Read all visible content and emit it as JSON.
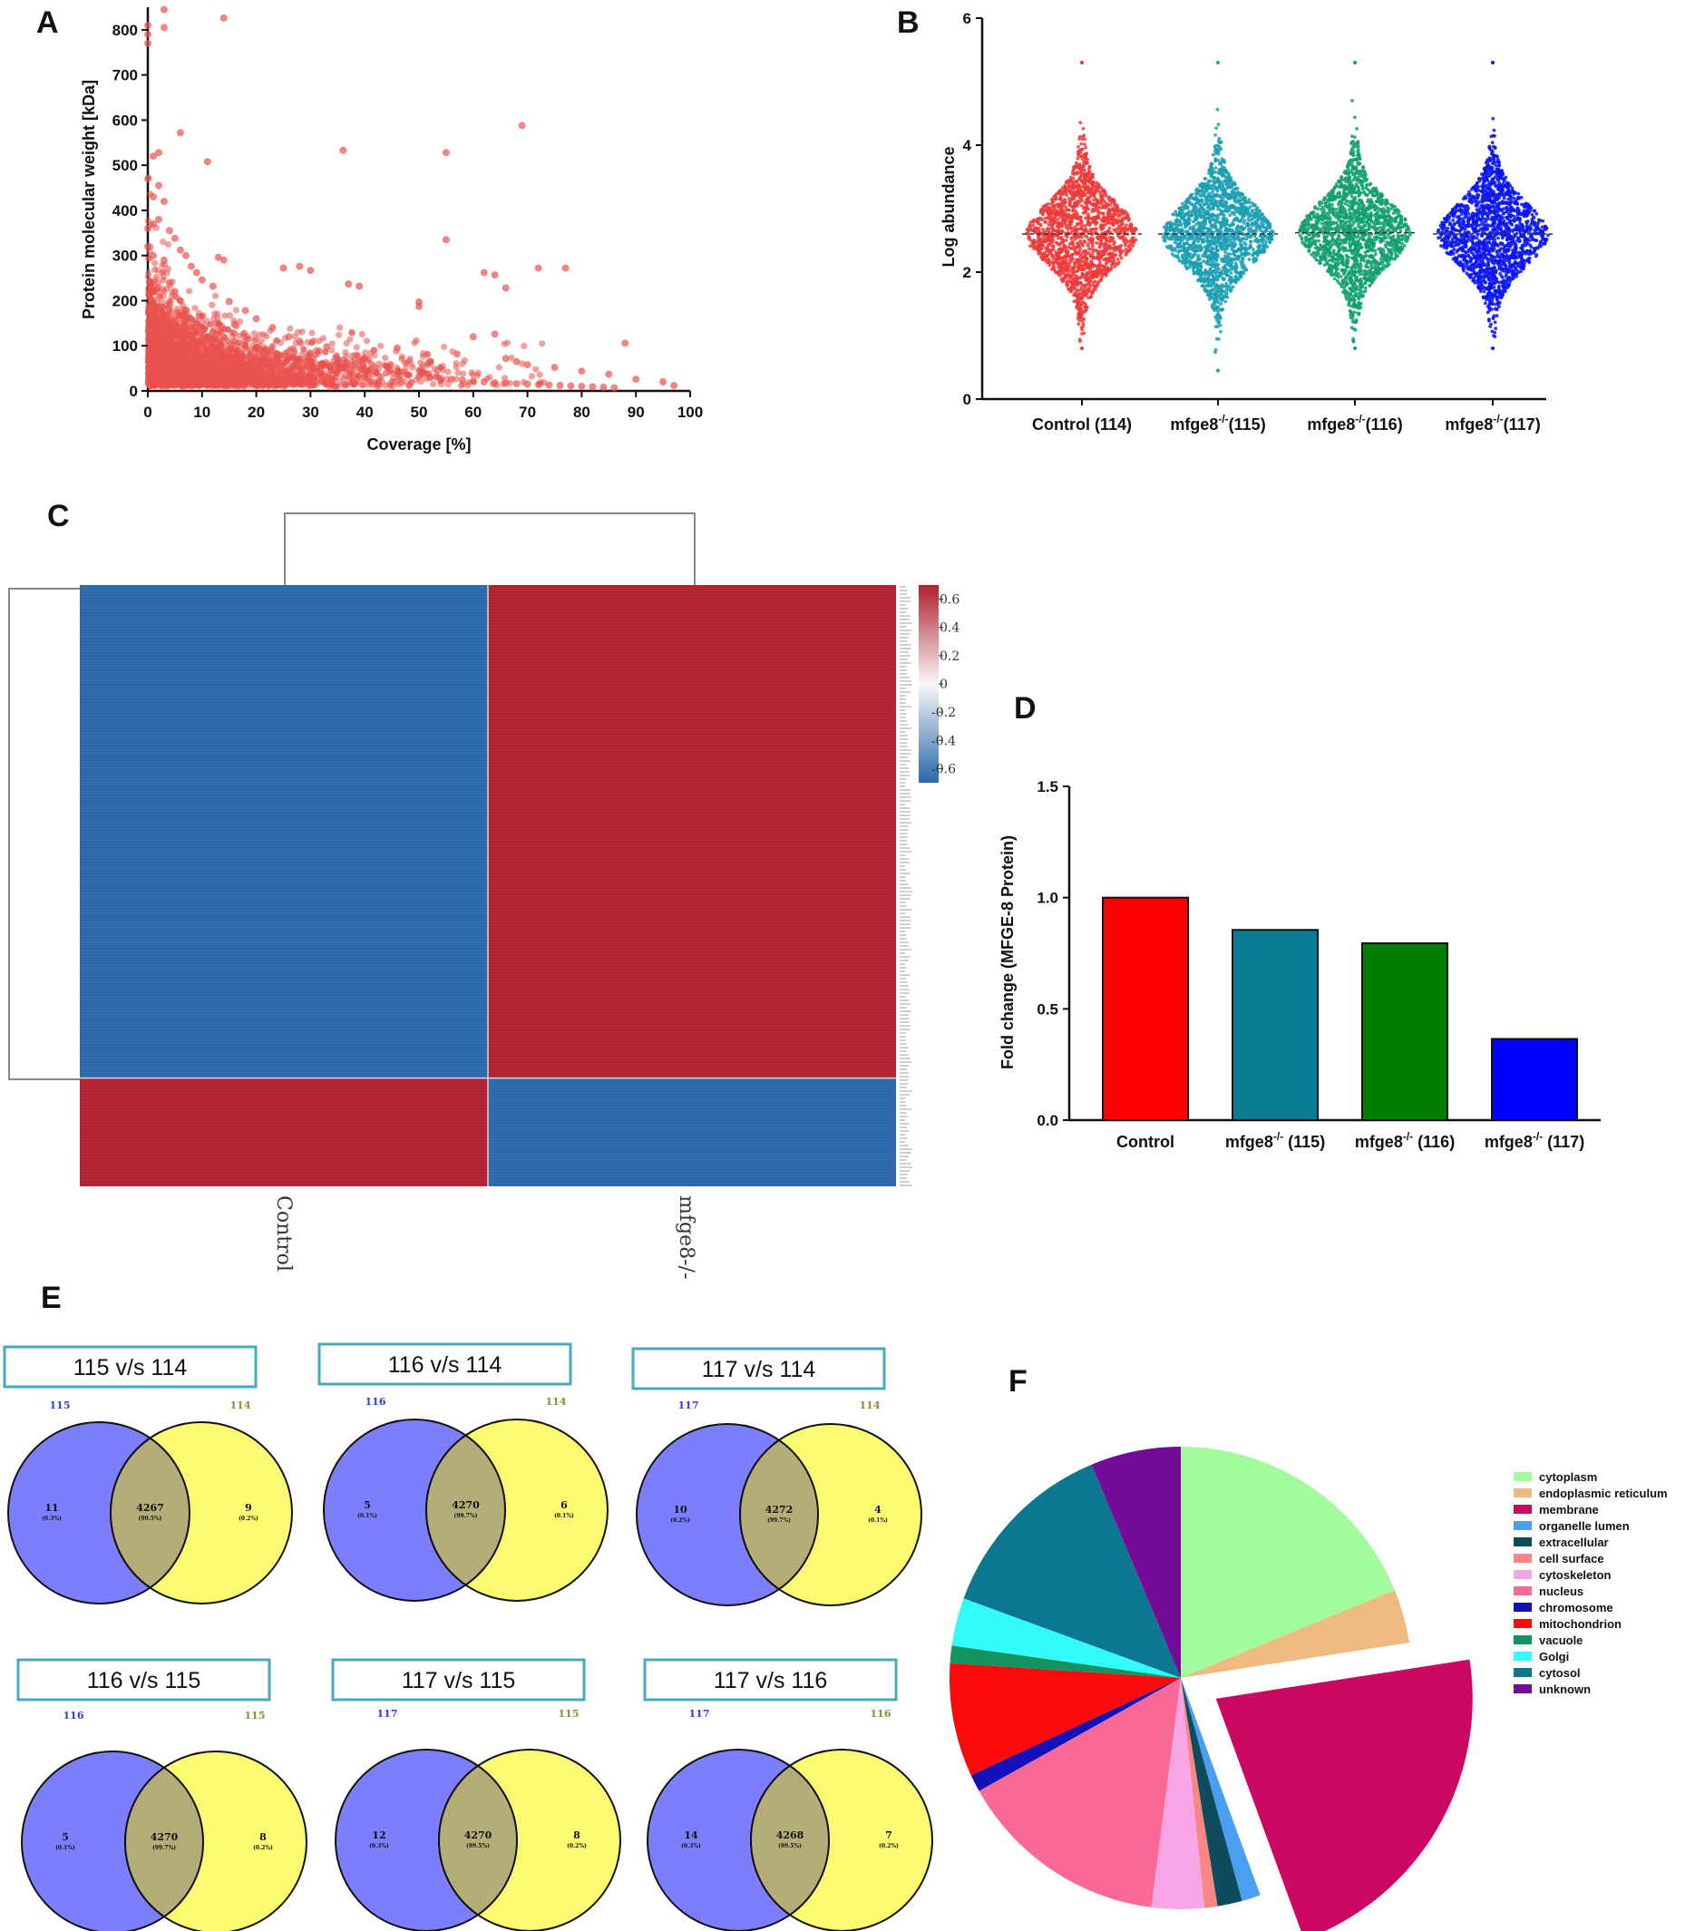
{
  "panel_labels": {
    "a": "A",
    "b": "B",
    "c": "C",
    "d": "D",
    "e": "E",
    "f": "F"
  },
  "chart_data": [
    {
      "panel": "A",
      "type": "scatter",
      "xlabel": "Coverage [%]",
      "ylabel": "Protein molecular weight [kDa]",
      "xlim": [
        0,
        100
      ],
      "ylim": [
        0,
        850
      ],
      "xticks": [
        "0",
        "10",
        "20",
        "30",
        "40",
        "50",
        "60",
        "70",
        "80",
        "90",
        "100"
      ],
      "yticks": [
        "0",
        "100",
        "200",
        "300",
        "400",
        "500",
        "600",
        "700",
        "800"
      ],
      "color": "#e9524f",
      "points": [
        [
          0,
          790
        ],
        [
          0,
          770
        ],
        [
          0,
          810
        ],
        [
          3,
          845
        ],
        [
          3,
          805
        ],
        [
          14,
          826
        ],
        [
          11,
          508
        ],
        [
          6,
          572
        ],
        [
          1,
          520
        ],
        [
          2,
          528
        ],
        [
          0,
          470
        ],
        [
          36,
          533
        ],
        [
          55,
          528
        ],
        [
          69,
          588
        ],
        [
          55,
          335
        ],
        [
          72,
          272
        ],
        [
          77,
          272
        ],
        [
          50,
          197
        ],
        [
          50,
          187
        ],
        [
          62,
          262
        ],
        [
          64,
          257
        ],
        [
          66,
          228
        ],
        [
          37,
          237
        ],
        [
          39,
          232
        ],
        [
          14,
          290
        ],
        [
          13,
          296
        ],
        [
          28,
          276
        ],
        [
          25,
          272
        ],
        [
          30,
          267
        ],
        [
          60,
          120
        ],
        [
          64,
          126
        ],
        [
          88,
          106
        ],
        [
          70,
          58
        ],
        [
          75,
          52
        ],
        [
          80,
          44
        ],
        [
          85,
          37
        ],
        [
          90,
          26
        ],
        [
          95,
          20
        ],
        [
          97,
          12
        ],
        [
          66,
          72
        ],
        [
          68,
          65
        ],
        [
          57,
          82
        ],
        [
          52,
          66
        ],
        [
          46,
          95
        ],
        [
          44,
          55
        ],
        [
          40,
          72
        ],
        [
          35,
          62
        ],
        [
          33,
          98
        ],
        [
          30,
          84
        ],
        [
          28,
          110
        ],
        [
          26,
          120
        ],
        [
          23,
          140
        ],
        [
          20,
          160
        ],
        [
          18,
          178
        ],
        [
          16,
          147
        ],
        [
          15,
          198
        ],
        [
          12,
          232
        ],
        [
          10,
          246
        ],
        [
          9,
          262
        ],
        [
          8,
          276
        ],
        [
          7,
          300
        ],
        [
          6,
          312
        ],
        [
          5,
          338
        ],
        [
          4,
          355
        ],
        [
          3,
          420
        ],
        [
          2,
          455
        ],
        [
          2,
          380
        ],
        [
          1,
          430
        ],
        [
          1,
          370
        ],
        [
          0,
          360
        ],
        [
          0,
          320
        ],
        [
          1,
          300
        ],
        [
          3,
          290
        ],
        [
          4,
          240
        ],
        [
          5,
          220
        ],
        [
          6,
          200
        ],
        [
          7,
          180
        ],
        [
          8,
          160
        ],
        [
          9,
          150
        ],
        [
          10,
          140
        ],
        [
          12,
          130
        ],
        [
          14,
          120
        ],
        [
          16,
          110
        ],
        [
          18,
          100
        ],
        [
          20,
          95
        ],
        [
          22,
          90
        ],
        [
          24,
          82
        ],
        [
          26,
          76
        ],
        [
          28,
          70
        ],
        [
          30,
          66
        ],
        [
          32,
          60
        ],
        [
          34,
          56
        ],
        [
          36,
          52
        ],
        [
          38,
          48
        ],
        [
          40,
          45
        ],
        [
          42,
          42
        ],
        [
          44,
          40
        ],
        [
          46,
          38
        ],
        [
          48,
          35
        ],
        [
          50,
          32
        ],
        [
          52,
          30
        ],
        [
          54,
          28
        ],
        [
          56,
          26
        ],
        [
          58,
          24
        ],
        [
          60,
          22
        ],
        [
          62,
          20
        ],
        [
          64,
          18
        ],
        [
          66,
          17
        ],
        [
          68,
          16
        ],
        [
          70,
          15
        ],
        [
          72,
          14
        ],
        [
          74,
          13
        ],
        [
          76,
          12
        ],
        [
          78,
          11
        ],
        [
          80,
          10
        ],
        [
          82,
          9
        ],
        [
          84,
          8
        ],
        [
          86,
          7
        ]
      ]
    },
    {
      "panel": "B",
      "type": "scatter",
      "ylabel": "Log abundance",
      "ylim": [
        0,
        6
      ],
      "yticks": [
        "0",
        "2",
        "4",
        "6"
      ],
      "categories": [
        "Control (114)",
        "mfge8 (115)",
        "mfge8 (116)",
        "mfge8 (117)"
      ],
      "category_superscript": "-/-",
      "series": [
        {
          "name": "Control (114)",
          "median": 2.6,
          "min": 0.8,
          "max": 5.3,
          "color": "#ef3b3b"
        },
        {
          "name": "mfge8-/- (115)",
          "median": 2.6,
          "min": 0.45,
          "max": 5.3,
          "color": "#1c9fb3"
        },
        {
          "name": "mfge8-/- (116)",
          "median": 2.62,
          "min": 0.8,
          "max": 5.3,
          "color": "#13a06e"
        },
        {
          "name": "mfge8-/- (117)",
          "median": 2.6,
          "min": 0.8,
          "max": 5.3,
          "color": "#0a16f0"
        }
      ]
    },
    {
      "panel": "C",
      "type": "heatmap",
      "columns": [
        "Control",
        "mfge8-/-"
      ],
      "colorbar_ticks": [
        "0.6",
        "0.4",
        "0.2",
        "0",
        "-0.2",
        "-0.4",
        "-0.6"
      ],
      "colorbar_range": [
        -0.7,
        0.7
      ],
      "blocks": [
        {
          "rows": "upper",
          "fraction": 0.82,
          "values": [
            -0.7,
            0.7
          ]
        },
        {
          "rows": "lower",
          "fraction": 0.18,
          "values": [
            0.7,
            -0.7
          ]
        }
      ],
      "colors": {
        "high": "#b0202f",
        "low": "#2b67ab"
      }
    },
    {
      "panel": "D",
      "type": "bar",
      "ylabel": "Fold change (MFGE-8 Protein)",
      "ylim": [
        0,
        1.5
      ],
      "yticks": [
        "0.0",
        "0.5",
        "1.0",
        "1.5"
      ],
      "categories": [
        "Control",
        "mfge8 (115)",
        "mfge8 (116)",
        "mfge8 (117)"
      ],
      "category_superscript": "-/-",
      "values": [
        1.0,
        0.855,
        0.795,
        0.365
      ],
      "colors": [
        "#fe0000",
        "#077c92",
        "#007f00",
        "#0000fe"
      ]
    },
    {
      "panel": "E",
      "type": "venn",
      "comparisons": [
        {
          "title": "115 v/s 114",
          "left": "115",
          "right": "114",
          "left_only": "11",
          "left_pct": "(0.3%)",
          "both": "4267",
          "both_pct": "(99.5%)",
          "right_only": "9",
          "right_pct": "(0.2%)"
        },
        {
          "title": "116 v/s 114",
          "left": "116",
          "right": "114",
          "left_only": "5",
          "left_pct": "(0.1%)",
          "both": "4270",
          "both_pct": "(99.7%)",
          "right_only": "6",
          "right_pct": "(0.1%)"
        },
        {
          "title": "117 v/s 114",
          "left": "117",
          "right": "114",
          "left_only": "10",
          "left_pct": "(0.2%)",
          "both": "4272",
          "both_pct": "(99.7%)",
          "right_only": "4",
          "right_pct": "(0.1%)"
        },
        {
          "title": "116 v/s 115",
          "left": "116",
          "right": "115",
          "left_only": "5",
          "left_pct": "(0.1%)",
          "both": "4270",
          "both_pct": "(99.7%)",
          "right_only": "8",
          "right_pct": "(0.2%)"
        },
        {
          "title": "117 v/s 115",
          "left": "117",
          "right": "115",
          "left_only": "12",
          "left_pct": "(0.3%)",
          "both": "4270",
          "both_pct": "(99.5%)",
          "right_only": "8",
          "right_pct": "(0.2%)"
        },
        {
          "title": "117 v/s 116",
          "left": "117",
          "right": "116",
          "left_only": "14",
          "left_pct": "(0.3%)",
          "both": "4268",
          "both_pct": "(99.5%)",
          "right_only": "7",
          "right_pct": "(0.2%)"
        }
      ]
    },
    {
      "panel": "F",
      "type": "pie",
      "slices": [
        {
          "label": "cytoplasm",
          "value": 18.5,
          "color": "#a2fb9c"
        },
        {
          "label": "endoplasmic reticulum",
          "value": 3.7,
          "color": "#efba80"
        },
        {
          "label": "membrane",
          "value": 21.5,
          "color": "#cc0763",
          "exploded": true
        },
        {
          "label": "organelle lumen",
          "value": 1.3,
          "color": "#4a9ff0"
        },
        {
          "label": "extracellular",
          "value": 1.7,
          "color": "#0d4c5c"
        },
        {
          "label": "cell surface",
          "value": 0.9,
          "color": "#f98682"
        },
        {
          "label": "cytoskeleton",
          "value": 3.6,
          "color": "#f6a5e6"
        },
        {
          "label": "nucleus",
          "value": 14.6,
          "color": "#f96996"
        },
        {
          "label": "chromosome",
          "value": 1.2,
          "color": "#1312b8"
        },
        {
          "label": "mitochondrion",
          "value": 7.8,
          "color": "#fb0a0a"
        },
        {
          "label": "vacuole",
          "value": 1.2,
          "color": "#14935f"
        },
        {
          "label": "Golgi",
          "value": 3.3,
          "color": "#33fbfa"
        },
        {
          "label": "cytosol",
          "value": 12.9,
          "color": "#0c7790"
        },
        {
          "label": "unknown",
          "value": 6.2,
          "color": "#740b98"
        }
      ]
    }
  ]
}
